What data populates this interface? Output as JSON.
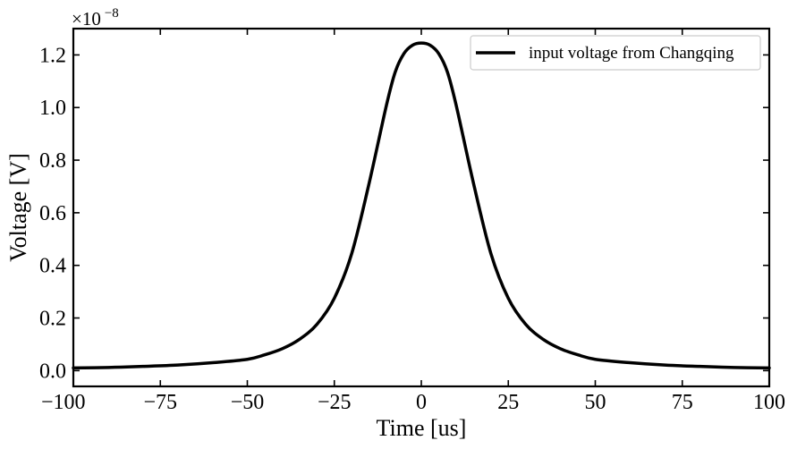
{
  "chart_data": {
    "type": "line",
    "title": "",
    "xlabel": "Time [us]",
    "ylabel": "Voltage [V]",
    "xlim": [
      -100,
      100
    ],
    "ylim": [
      -0.06,
      1.3
    ],
    "y_offset_label": {
      "base": "×10",
      "exponent": "−8"
    },
    "x_ticks": [
      -100,
      -75,
      -50,
      -25,
      0,
      25,
      50,
      75,
      100
    ],
    "x_tick_labels": [
      "−100",
      "−75",
      "−50",
      "−25",
      "0",
      "25",
      "50",
      "75",
      "100"
    ],
    "y_ticks": [
      0.0,
      0.2,
      0.4,
      0.6,
      0.8,
      1.0,
      1.2
    ],
    "y_tick_labels": [
      "0.0",
      "0.2",
      "0.4",
      "0.6",
      "0.8",
      "1.0",
      "1.2"
    ],
    "legend": {
      "location": "top-right",
      "entries": [
        "input voltage from Changqing"
      ]
    },
    "series": [
      {
        "name": "input voltage from Changqing",
        "color": "#000000",
        "x": [
          -100,
          -90,
          -80,
          -70,
          -60,
          -50,
          -45,
          -40,
          -35,
          -30,
          -25,
          -20,
          -15,
          -10,
          -7.5,
          -5,
          -2.5,
          0,
          2.5,
          5,
          7.5,
          10,
          15,
          20,
          25,
          30,
          35,
          40,
          45,
          50,
          60,
          70,
          80,
          90,
          100
        ],
        "values": [
          0.01,
          0.012,
          0.016,
          0.021,
          0.03,
          0.043,
          0.06,
          0.083,
          0.119,
          0.176,
          0.275,
          0.445,
          0.712,
          1.01,
          1.135,
          1.205,
          1.237,
          1.245,
          1.237,
          1.205,
          1.135,
          1.01,
          0.712,
          0.445,
          0.275,
          0.176,
          0.119,
          0.083,
          0.06,
          0.043,
          0.03,
          0.021,
          0.016,
          0.012,
          0.01
        ]
      }
    ]
  }
}
